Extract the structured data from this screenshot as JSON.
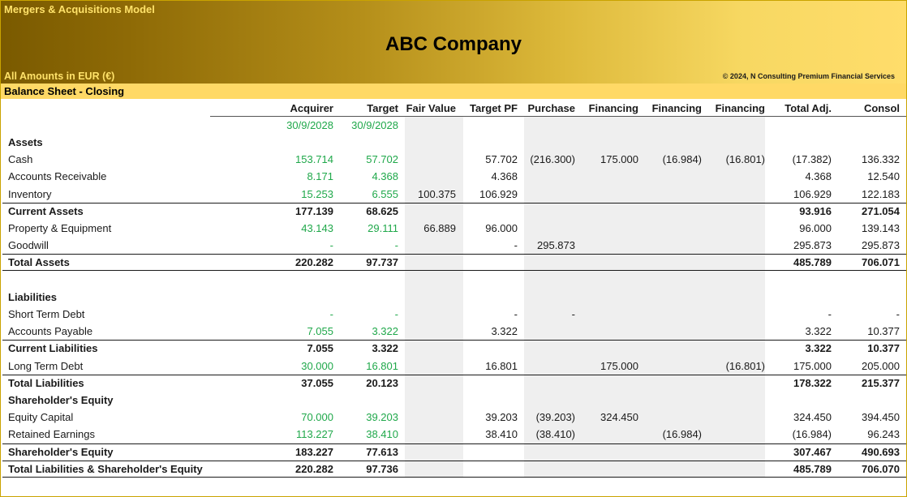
{
  "header": {
    "model_title": "Mergers & Acquisitions Model",
    "company": "ABC Company",
    "amounts": "All Amounts in  EUR (€)",
    "copyright": "© 2024, N Consulting Premium Financial Services",
    "section": "Balance Sheet - Closing"
  },
  "columns": [
    "Acquirer",
    "Target",
    "Fair Value",
    "Target PF",
    "Purchase",
    "Financing",
    "Financing",
    "Financing",
    "Total Adj.",
    "Consol"
  ],
  "dates": [
    "30/9/2028",
    "30/9/2028"
  ],
  "rows": [
    {
      "label": "Assets",
      "values": [
        "",
        "",
        "",
        "",
        "",
        "",
        "",
        "",
        "",
        ""
      ]
    },
    {
      "label": "Cash",
      "values": [
        "153.714",
        "57.702",
        "",
        "57.702",
        "(216.300)",
        "175.000",
        "(16.984)",
        "(16.801)",
        "(17.382)",
        "136.332"
      ]
    },
    {
      "label": "Accounts Receivable",
      "values": [
        "8.171",
        "4.368",
        "",
        "4.368",
        "",
        "",
        "",
        "",
        "4.368",
        "12.540"
      ]
    },
    {
      "label": "Inventory",
      "values": [
        "15.253",
        "6.555",
        "100.375",
        "106.929",
        "",
        "",
        "",
        "",
        "106.929",
        "122.183"
      ]
    },
    {
      "label": "Current Assets",
      "values": [
        "177.139",
        "68.625",
        "",
        "",
        "",
        "",
        "",
        "",
        "93.916",
        "271.054"
      ]
    },
    {
      "label": "Property & Equipment",
      "values": [
        "43.143",
        "29.111",
        "66.889",
        "96.000",
        "",
        "",
        "",
        "",
        "96.000",
        "139.143"
      ]
    },
    {
      "label": "Goodwill",
      "values": [
        "-",
        "-",
        "",
        "-",
        "295.873",
        "",
        "",
        "",
        "295.873",
        "295.873"
      ]
    },
    {
      "label": "Total Assets",
      "values": [
        "220.282",
        "97.737",
        "",
        "",
        "",
        "",
        "",
        "",
        "485.789",
        "706.071"
      ]
    },
    {
      "label": "",
      "values": [
        "",
        "",
        "",
        "",
        "",
        "",
        "",
        "",
        "",
        ""
      ]
    },
    {
      "label": "Liabilities",
      "values": [
        "",
        "",
        "",
        "",
        "",
        "",
        "",
        "",
        "",
        ""
      ]
    },
    {
      "label": "Short Term Debt",
      "values": [
        "-",
        "-",
        "",
        "-",
        "-",
        "",
        "",
        "",
        "-",
        "-"
      ]
    },
    {
      "label": "Accounts Payable",
      "values": [
        "7.055",
        "3.322",
        "",
        "3.322",
        "",
        "",
        "",
        "",
        "3.322",
        "10.377"
      ]
    },
    {
      "label": "Current Liabilities",
      "values": [
        "7.055",
        "3.322",
        "",
        "",
        "",
        "",
        "",
        "",
        "3.322",
        "10.377"
      ]
    },
    {
      "label": "Long Term Debt",
      "values": [
        "30.000",
        "16.801",
        "",
        "16.801",
        "",
        "175.000",
        "",
        "(16.801)",
        "175.000",
        "205.000"
      ]
    },
    {
      "label": "Total Liabilities",
      "values": [
        "37.055",
        "20.123",
        "",
        "",
        "",
        "",
        "",
        "",
        "178.322",
        "215.377"
      ]
    },
    {
      "label": "Shareholder's Equity",
      "values": [
        "",
        "",
        "",
        "",
        "",
        "",
        "",
        "",
        "",
        ""
      ]
    },
    {
      "label": "Equity Capital",
      "values": [
        "70.000",
        "39.203",
        "",
        "39.203",
        "(39.203)",
        "324.450",
        "",
        "",
        "324.450",
        "394.450"
      ]
    },
    {
      "label": "Retained Earnings",
      "values": [
        "113.227",
        "38.410",
        "",
        "38.410",
        "(38.410)",
        "",
        "(16.984)",
        "",
        "(16.984)",
        "96.243"
      ]
    },
    {
      "label": "Shareholder's Equity",
      "values": [
        "183.227",
        "77.613",
        "",
        "",
        "",
        "",
        "",
        "",
        "307.467",
        "490.693"
      ]
    },
    {
      "label": "Total Liabilities & Shareholder's Equity",
      "values": [
        "220.282",
        "97.736",
        "",
        "",
        "",
        "",
        "",
        "",
        "485.789",
        "706.070"
      ]
    }
  ]
}
